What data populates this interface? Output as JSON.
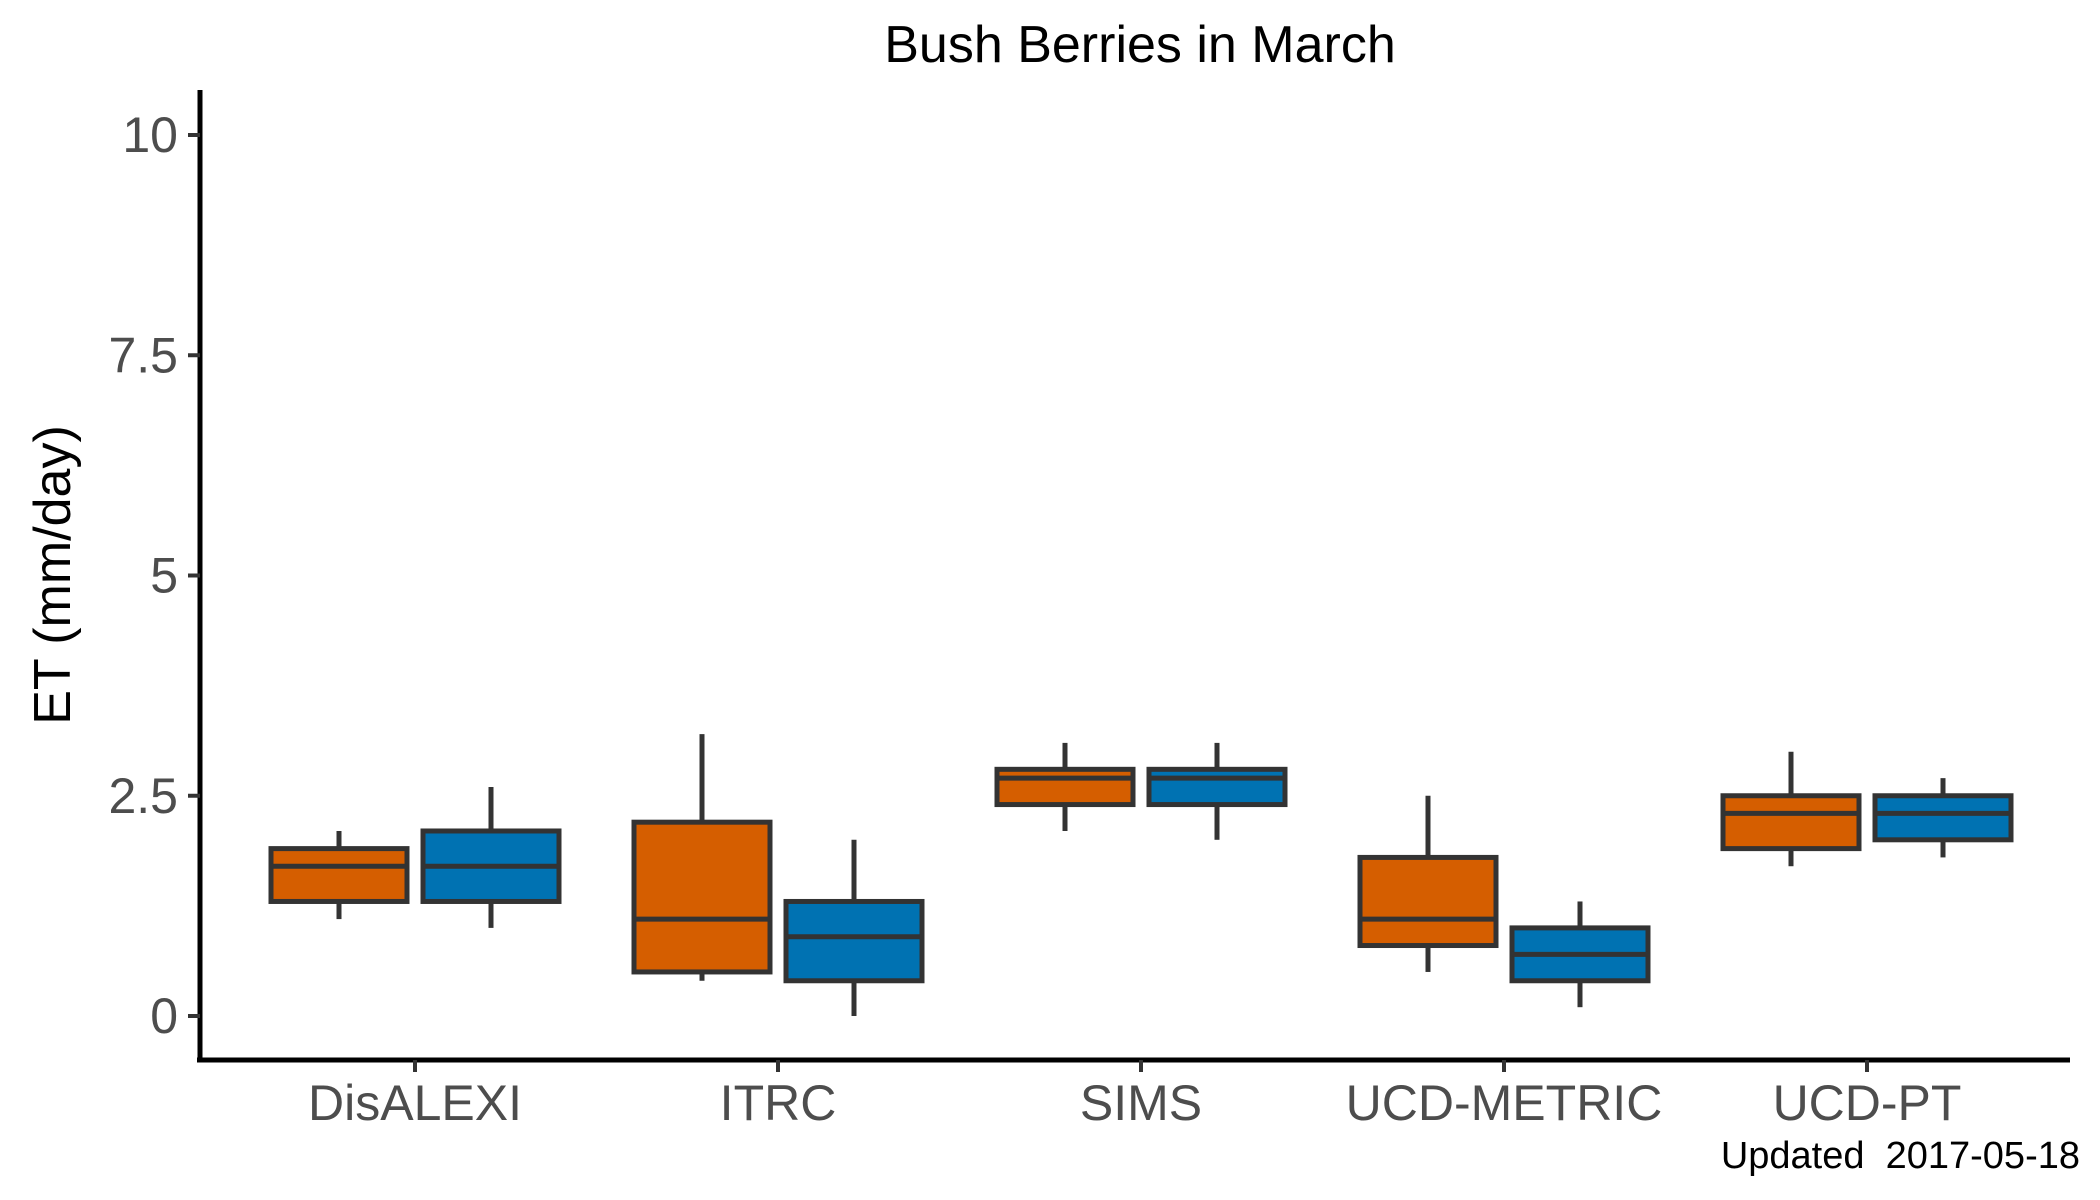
{
  "chart_data": {
    "type": "boxplot",
    "title": "Bush Berries in March",
    "xlabel": "",
    "ylabel": "ET (mm/day)",
    "ylim": [
      -0.5,
      10.5
    ],
    "yticks": [
      0,
      2.5,
      5,
      7.5,
      10
    ],
    "ytick_labels": [
      "0",
      "2.5",
      "5",
      "7.5",
      "10"
    ],
    "categories": [
      "DisALEXI",
      "ITRC",
      "SIMS",
      "UCD-METRIC",
      "UCD-PT"
    ],
    "grid": false,
    "legend": "none",
    "series": [
      {
        "name": "series-1",
        "color": "#D55E00",
        "boxes": [
          {
            "whisker_low": 1.1,
            "q1": 1.3,
            "median": 1.7,
            "q3": 1.9,
            "whisker_high": 2.1
          },
          {
            "whisker_low": 0.4,
            "q1": 0.5,
            "median": 1.1,
            "q3": 2.2,
            "whisker_high": 3.2
          },
          {
            "whisker_low": 2.1,
            "q1": 2.4,
            "median": 2.7,
            "q3": 2.8,
            "whisker_high": 3.1
          },
          {
            "whisker_low": 0.5,
            "q1": 0.8,
            "median": 1.1,
            "q3": 1.8,
            "whisker_high": 2.5
          },
          {
            "whisker_low": 1.7,
            "q1": 1.9,
            "median": 2.3,
            "q3": 2.5,
            "whisker_high": 3.0
          }
        ]
      },
      {
        "name": "series-2",
        "color": "#0072B2",
        "boxes": [
          {
            "whisker_low": 1.0,
            "q1": 1.3,
            "median": 1.7,
            "q3": 2.1,
            "whisker_high": 2.6
          },
          {
            "whisker_low": 0.0,
            "q1": 0.4,
            "median": 0.9,
            "q3": 1.3,
            "whisker_high": 2.0
          },
          {
            "whisker_low": 2.0,
            "q1": 2.4,
            "median": 2.7,
            "q3": 2.8,
            "whisker_high": 3.1
          },
          {
            "whisker_low": 0.1,
            "q1": 0.4,
            "median": 0.7,
            "q3": 1.0,
            "whisker_high": 1.3
          },
          {
            "whisker_low": 1.8,
            "q1": 2.0,
            "median": 2.3,
            "q3": 2.5,
            "whisker_high": 2.7
          }
        ]
      }
    ],
    "annotation": "Updated  2017-05-18"
  }
}
